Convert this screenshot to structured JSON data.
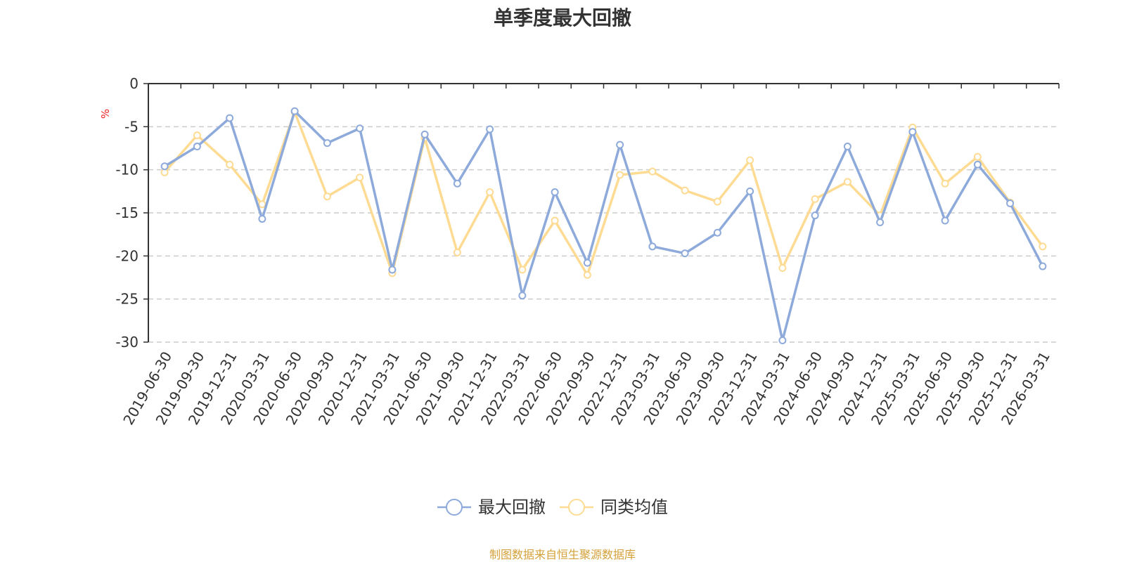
{
  "chart_data": {
    "type": "line",
    "title": "单季度最大回撤",
    "ylabel": "%",
    "ylim": [
      -30,
      0
    ],
    "yticks": [
      "0",
      "-5",
      "-10",
      "-15",
      "-20",
      "-25",
      "-30"
    ],
    "grid": true,
    "legend_position": "bottom",
    "categories": [
      "2019-06-30",
      "2019-09-30",
      "2019-12-31",
      "2020-03-31",
      "2020-06-30",
      "2020-09-30",
      "2020-12-31",
      "2021-03-31",
      "2021-06-30",
      "2021-09-30",
      "2021-12-31",
      "2022-03-31",
      "2022-06-30",
      "2022-09-30",
      "2022-12-31",
      "2023-03-31",
      "2023-06-30",
      "2023-09-30",
      "2023-12-31",
      "2024-03-31",
      "2024-06-30",
      "2024-09-30",
      "2024-12-31",
      "2025-03-31",
      "2025-06-30",
      "2025-09-30",
      "2025-12-31",
      "2026-03-31"
    ],
    "series": [
      {
        "name": "最大回撤",
        "color": "#8eaadb",
        "values": [
          -9.6,
          -7.3,
          -4.0,
          -15.7,
          -3.2,
          -6.9,
          -5.2,
          -21.6,
          -5.9,
          -11.6,
          -5.3,
          -24.6,
          -12.6,
          -20.8,
          -7.1,
          -18.9,
          -19.7,
          -17.3,
          -12.5,
          -29.8,
          -15.3,
          -7.3,
          -16.1,
          -5.6,
          -15.9,
          -9.4,
          -13.9,
          -21.2
        ]
      },
      {
        "name": "同类均值",
        "color": "#fddb93",
        "values": [
          -10.3,
          -6.0,
          -9.4,
          -14.0,
          -3.3,
          -13.1,
          -10.9,
          -22.0,
          -6.3,
          -19.6,
          -12.6,
          -21.6,
          -15.9,
          -22.2,
          -10.6,
          -10.2,
          -12.4,
          -13.7,
          -8.9,
          -21.4,
          -13.4,
          -11.4,
          -15.3,
          -5.1,
          -11.6,
          -8.5,
          -13.8,
          -18.9
        ]
      }
    ]
  },
  "source_note": "制图数据来自恒生聚源数据库"
}
